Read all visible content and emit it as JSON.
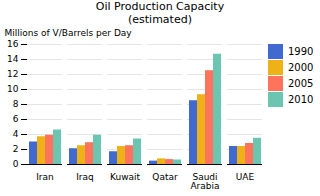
{
  "chart_data": {
    "type": "bar",
    "title": "Oil Production Capacity\n(estimated)",
    "ylabel": "Millions of V/Barrels per Day",
    "categories": [
      "Iran",
      "Iraq",
      "Kuwait",
      "Qatar",
      "Saudi\nArabia",
      "UAE"
    ],
    "series": [
      {
        "name": "1990",
        "values": [
          3.0,
          2.1,
          1.7,
          0.45,
          8.5,
          2.4
        ]
      },
      {
        "name": "2000",
        "values": [
          3.7,
          2.5,
          2.4,
          0.75,
          9.3,
          2.4
        ]
      },
      {
        "name": "2005",
        "values": [
          3.9,
          2.9,
          2.5,
          0.65,
          12.5,
          2.8
        ]
      },
      {
        "name": "2010",
        "values": [
          4.6,
          3.9,
          3.4,
          0.6,
          14.7,
          3.5
        ]
      }
    ],
    "ylim": [
      0,
      16
    ],
    "yticks": [
      0,
      2,
      4,
      6,
      8,
      10,
      12,
      14,
      16
    ],
    "grid": true,
    "legend": "right"
  }
}
